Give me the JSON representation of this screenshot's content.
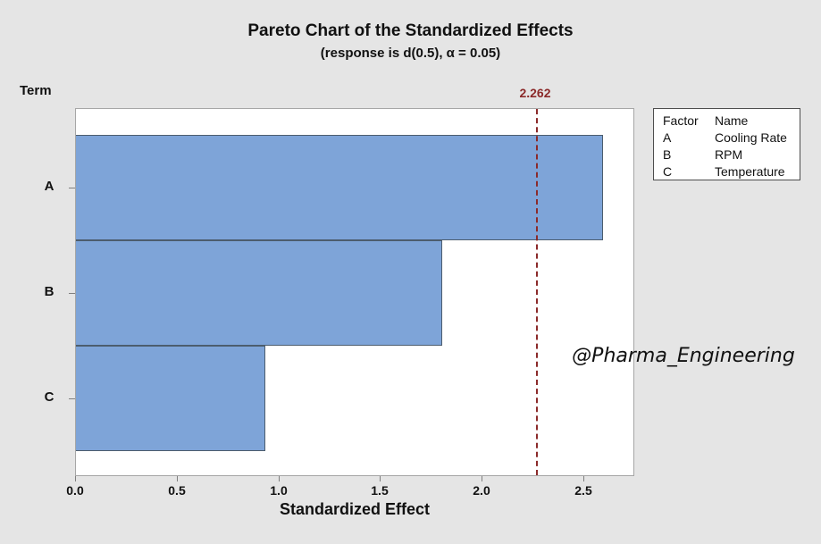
{
  "title": "Pareto Chart of the Standardized Effects",
  "subtitle": "(response is d(0.5), α = 0.05)",
  "y_axis_title": "Term",
  "x_axis_title": "Standardized Effect",
  "watermark": "@Pharma_Engineering",
  "legend": {
    "headers": [
      "Factor",
      "Name"
    ],
    "rows": [
      {
        "factor": "A",
        "name": "Cooling Rate"
      },
      {
        "factor": "B",
        "name": "RPM"
      },
      {
        "factor": "C",
        "name": "Temperature"
      }
    ]
  },
  "chart_data": {
    "type": "bar",
    "orientation": "horizontal",
    "title": "Pareto Chart of the Standardized Effects",
    "subtitle": "(response is d(0.5), α = 0.05)",
    "xlabel": "Standardized Effect",
    "ylabel": "Term",
    "categories": [
      "A",
      "B",
      "C"
    ],
    "values": [
      2.59,
      1.8,
      0.93
    ],
    "xlim": [
      0,
      2.75
    ],
    "x_ticks": [
      0.0,
      0.5,
      1.0,
      1.5,
      2.0,
      2.5
    ],
    "reference": {
      "label": "2.262",
      "value": 2.262
    },
    "grid": false,
    "legend_position": "top-right",
    "colors": {
      "bar_fill": "#7EA4D8",
      "bar_border": "#4C5D6E",
      "reference_line": "#8B2A2A",
      "background": "#E5E5E5",
      "plot_background": "#FFFFFF",
      "plot_border": "#A6A6A6"
    }
  }
}
